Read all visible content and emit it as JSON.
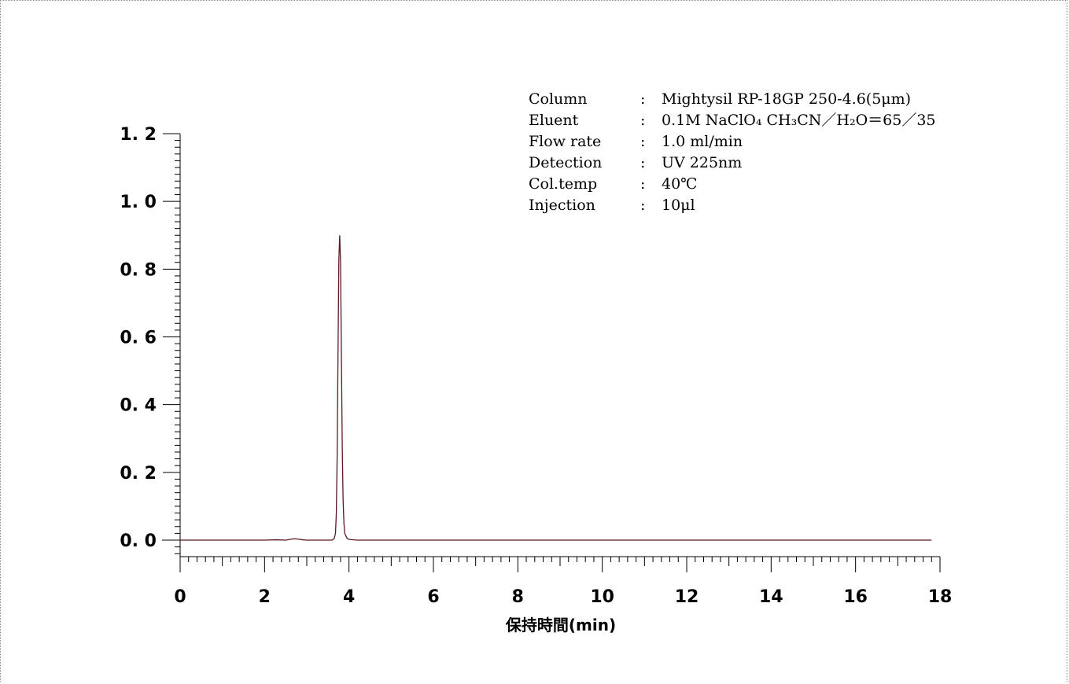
{
  "conditions": {
    "rows": [
      {
        "label": "Column",
        "colon": ":",
        "value": "Mightysil RP-18GP 250-4.6(5μm)"
      },
      {
        "label": "Eluent",
        "colon": ":",
        "value": "0.1M NaClO₄ CH₃CN／H₂O＝65／35"
      },
      {
        "label": "Flow rate",
        "colon": ":",
        "value": "1.0 ml/min"
      },
      {
        "label": "Detection",
        "colon": ":",
        "value": "UV 225nm"
      },
      {
        "label": "Col.temp",
        "colon": ":",
        "value": "40℃"
      },
      {
        "label": "Injection",
        "colon": ":",
        "value": "10μl"
      }
    ]
  },
  "chart_data": {
    "type": "line",
    "title": "",
    "xlabel": "保持時間(min)",
    "ylabel": "",
    "xlim": [
      0,
      18
    ],
    "ylim": [
      -0.05,
      1.2
    ],
    "x_ticks": [
      "0",
      "2",
      "4",
      "6",
      "8",
      "10",
      "12",
      "14",
      "16",
      "18"
    ],
    "y_ticks": [
      "0.0",
      "0.2",
      "0.4",
      "0.6",
      "0.8",
      "1.0",
      "1.2"
    ],
    "grid": false,
    "line_color": "#5a1a22",
    "series": [
      {
        "x": [
          0.0,
          2.0,
          2.3,
          2.5,
          2.6,
          2.7,
          2.8,
          2.9,
          3.0,
          3.3,
          3.6,
          3.65,
          3.68,
          3.7,
          3.72,
          3.74,
          3.76,
          3.78,
          3.8,
          3.82,
          3.84,
          3.86,
          3.88,
          3.9,
          3.95,
          4.0,
          4.2,
          5.0,
          10.0,
          17.8
        ],
        "y": [
          0.0,
          0.0,
          0.001,
          0.0,
          0.002,
          0.004,
          0.003,
          0.001,
          0.0,
          0.0,
          0.0,
          0.005,
          0.02,
          0.08,
          0.25,
          0.55,
          0.83,
          0.9,
          0.82,
          0.55,
          0.28,
          0.12,
          0.05,
          0.02,
          0.006,
          0.002,
          0.0,
          0.0,
          0.0,
          0.0
        ]
      }
    ]
  }
}
